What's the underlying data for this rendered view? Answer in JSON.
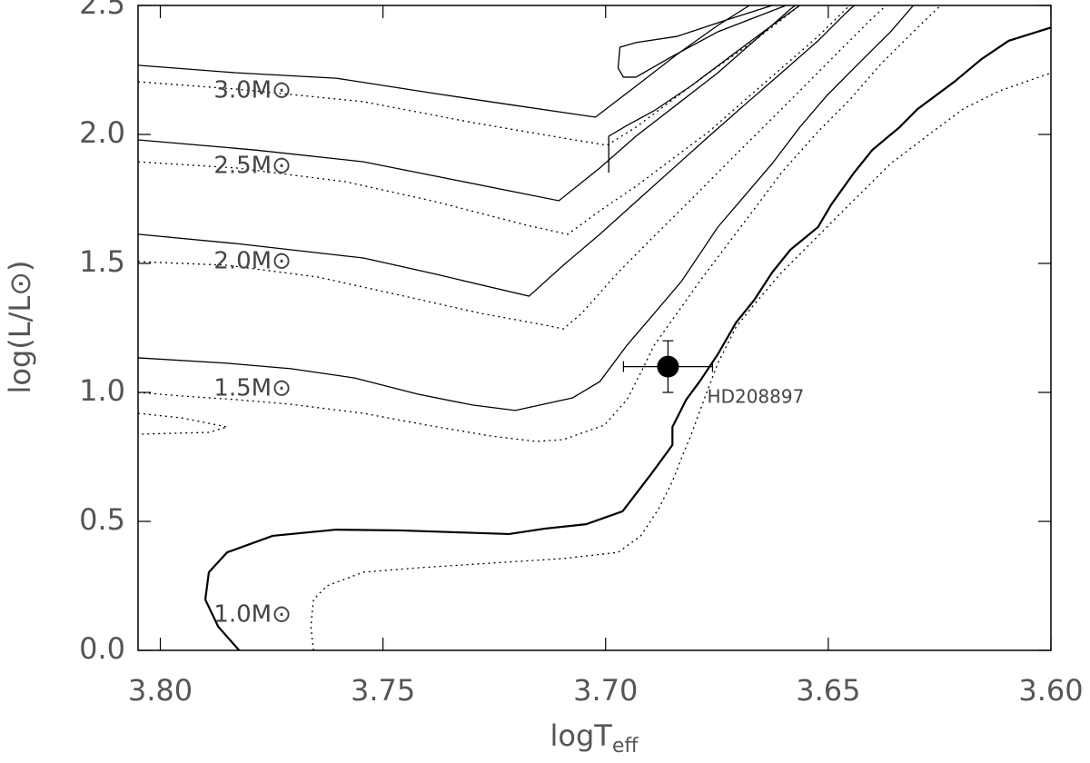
{
  "chart_data": {
    "type": "line",
    "xlabel": {
      "text": "logT",
      "subscript": "eff"
    },
    "ylabel": "log(L/L⊙)",
    "xlim": [
      3.805,
      3.6
    ],
    "ylim": [
      0,
      2.5
    ],
    "xticks": [
      {
        "value": 3.8,
        "label": "3.80"
      },
      {
        "value": 3.75,
        "label": "3.75"
      },
      {
        "value": 3.7,
        "label": "3.70"
      },
      {
        "value": 3.65,
        "label": "3.65"
      },
      {
        "value": 3.6,
        "label": "3.60"
      }
    ],
    "yticks": [
      {
        "value": 0,
        "label": "0.0"
      },
      {
        "value": 0.5,
        "label": "0.5"
      },
      {
        "value": 1,
        "label": "1.0"
      },
      {
        "value": 1.5,
        "label": "1.5"
      },
      {
        "value": 2,
        "label": "2.0"
      },
      {
        "value": 2.5,
        "label": "2.5"
      }
    ],
    "series": [
      {
        "style": "solid",
        "color": "#000000",
        "width": 2.2,
        "x": [
          3.7823,
          3.787,
          3.7899,
          3.7891,
          3.785,
          3.7748,
          3.7605,
          3.7462,
          3.734,
          3.7217,
          3.7136,
          3.7044,
          3.6962,
          3.6895,
          3.685,
          3.685,
          3.6819,
          3.6789,
          3.6748,
          3.6707,
          3.6666,
          3.6626,
          3.6585,
          3.6523,
          3.6493,
          3.6442,
          3.6401,
          3.634,
          3.6299,
          3.6217,
          3.6156,
          3.6095,
          3.5999
        ],
        "values": [
          0,
          0.092,
          0.197,
          0.303,
          0.38,
          0.444,
          0.468,
          0.465,
          0.458,
          0.451,
          0.472,
          0.489,
          0.539,
          0.69,
          0.796,
          0.866,
          0.972,
          1.042,
          1.148,
          1.271,
          1.359,
          1.465,
          1.553,
          1.641,
          1.729,
          1.852,
          1.94,
          2.028,
          2.099,
          2.204,
          2.292,
          2.363,
          2.415
        ]
      },
      {
        "style": "dotted",
        "color": "#000000",
        "width": 1.3,
        "x": [
          3.7656,
          3.7662,
          3.7656,
          3.7626,
          3.7544,
          3.7421,
          3.7258,
          3.7095,
          3.6972,
          3.6921,
          3.6881,
          3.685,
          3.6826,
          3.6809,
          3.6779,
          3.6748,
          3.6707,
          3.6666,
          3.6605,
          3.6544,
          3.6483,
          3.6421,
          3.636,
          3.6279,
          3.6197,
          3.6115,
          3.5999
        ],
        "values": [
          0,
          0.092,
          0.197,
          0.25,
          0.303,
          0.32,
          0.338,
          0.356,
          0.38,
          0.444,
          0.549,
          0.655,
          0.761,
          0.831,
          0.972,
          1.113,
          1.254,
          1.342,
          1.465,
          1.57,
          1.676,
          1.782,
          1.887,
          1.993,
          2.099,
          2.169,
          2.239
        ]
      },
      {
        "style": "solid",
        "color": "#000000",
        "width": 1.3,
        "x": [
          3.805,
          3.785,
          3.7707,
          3.7564,
          3.7421,
          3.7299,
          3.7203,
          3.7074,
          3.7013,
          3.6952,
          3.6891,
          3.683,
          3.6789,
          3.6748,
          3.6687,
          3.6626,
          3.6564,
          3.6503,
          3.6432,
          3.636,
          3.6309
        ],
        "values": [
          1.134,
          1.113,
          1.092,
          1.056,
          0.993,
          0.951,
          0.93,
          0.979,
          1.042,
          1.183,
          1.306,
          1.43,
          1.535,
          1.641,
          1.764,
          1.887,
          2.028,
          2.151,
          2.275,
          2.398,
          2.5
        ]
      },
      {
        "style": "dotted",
        "color": "#000000",
        "width": 1.3,
        "x": [
          3.805,
          3.7952,
          3.783,
          3.7707,
          3.7544,
          3.7401,
          3.7258,
          3.7156,
          3.7095,
          3.7003,
          3.6952,
          3.6921,
          3.6891,
          3.684,
          3.6789,
          3.6728,
          3.6666,
          3.6605,
          3.6523,
          3.6452,
          3.6381,
          3.6299,
          3.6248
        ],
        "values": [
          1.0,
          0.986,
          0.972,
          0.954,
          0.919,
          0.873,
          0.831,
          0.81,
          0.817,
          0.873,
          0.972,
          1.077,
          1.183,
          1.306,
          1.43,
          1.57,
          1.711,
          1.852,
          2.011,
          2.134,
          2.275,
          2.415,
          2.5
        ]
      },
      {
        "style": "dotted",
        "color": "#000000",
        "width": 1.3,
        "x": [
          3.805,
          3.7952,
          3.785,
          3.7891,
          3.805
        ],
        "values": [
          0.919,
          0.901,
          0.866,
          0.845,
          0.838
        ]
      },
      {
        "style": "solid",
        "color": "#000000",
        "width": 1.3,
        "x": [
          3.805,
          3.783,
          3.7544,
          3.7381,
          3.7172,
          3.7095,
          3.7013,
          3.6932,
          3.685,
          3.6768,
          3.6687,
          3.6605,
          3.6523,
          3.6462,
          3.6442
        ],
        "values": [
          1.613,
          1.577,
          1.521,
          1.458,
          1.373,
          1.493,
          1.613,
          1.739,
          1.866,
          1.993,
          2.116,
          2.239,
          2.363,
          2.468,
          2.5
        ]
      },
      {
        "style": "dotted",
        "color": "#000000",
        "width": 1.3,
        "x": [
          3.805,
          3.785,
          3.7646,
          3.7462,
          3.7279,
          3.7136,
          3.7095,
          3.7054,
          3.6972,
          3.6891,
          3.6809,
          3.6728,
          3.6646,
          3.6564,
          3.6483,
          3.6401,
          3.637
        ],
        "values": [
          1.507,
          1.493,
          1.447,
          1.377,
          1.306,
          1.261,
          1.246,
          1.306,
          1.465,
          1.606,
          1.746,
          1.887,
          2.028,
          2.169,
          2.31,
          2.451,
          2.5
        ]
      },
      {
        "style": "solid",
        "color": "#000000",
        "width": 1.3,
        "x": [
          3.805,
          3.7789,
          3.7544,
          3.734,
          3.7105,
          3.7013,
          3.6932,
          3.684,
          3.6748,
          3.6666,
          3.6585,
          3.6574
        ],
        "values": [
          1.979,
          1.94,
          1.894,
          1.824,
          1.743,
          1.87,
          1.993,
          2.116,
          2.239,
          2.363,
          2.486,
          2.5
        ]
      },
      {
        "style": "solid",
        "color": "#000000",
        "width": 1.3,
        "x": [
          3.6993,
          3.6993,
          3.6952,
          3.6891,
          3.6809,
          3.6728,
          3.6646,
          3.6564
        ],
        "values": [
          1.852,
          1.993,
          2.035,
          2.092,
          2.187,
          2.292,
          2.398,
          2.5
        ]
      },
      {
        "style": "dotted",
        "color": "#000000",
        "width": 1.3,
        "x": [
          3.805,
          3.783,
          3.7585,
          3.7381,
          3.7177,
          3.7085,
          3.7013,
          3.6932,
          3.685,
          3.6768,
          3.6687,
          3.6605,
          3.6523,
          3.6452
        ],
        "values": [
          1.894,
          1.87,
          1.817,
          1.739,
          1.648,
          1.613,
          1.704,
          1.799,
          1.905,
          2.011,
          2.134,
          2.257,
          2.38,
          2.5
        ]
      },
      {
        "style": "solid",
        "color": "#000000",
        "width": 1.3,
        "x": [
          3.805,
          3.783,
          3.7605,
          3.7381,
          3.7217,
          3.7023,
          3.6932,
          3.684,
          3.6748,
          3.6677
        ],
        "values": [
          2.268,
          2.239,
          2.218,
          2.158,
          2.116,
          2.067,
          2.187,
          2.31,
          2.423,
          2.5
        ]
      },
      {
        "style": "solid",
        "color": "#000000",
        "width": 1.3,
        "x": [
          3.6626,
          3.6728,
          3.684,
          3.6932,
          3.6968,
          3.6972,
          3.696,
          3.6932,
          3.685,
          3.6748,
          3.6595
        ],
        "values": [
          2.5,
          2.444,
          2.38,
          2.356,
          2.338,
          2.257,
          2.222,
          2.222,
          2.303,
          2.398,
          2.5
        ]
      },
      {
        "style": "dotted",
        "color": "#000000",
        "width": 1.3,
        "x": [
          3.805,
          3.783,
          3.7544,
          3.7299,
          3.7095,
          3.6997,
          3.6932,
          3.685,
          3.6768,
          3.6666,
          3.6564
        ],
        "values": [
          2.204,
          2.176,
          2.127,
          2.046,
          1.986,
          1.958,
          2.028,
          2.134,
          2.239,
          2.363,
          2.5
        ]
      }
    ],
    "annotations": [
      {
        "text": "3.0M⊙",
        "x": 3.788,
        "y": 2.169
      },
      {
        "text": "2.5M⊙",
        "x": 3.788,
        "y": 1.877
      },
      {
        "text": "2.0M⊙",
        "x": 3.788,
        "y": 1.507
      },
      {
        "text": "1.5M⊙",
        "x": 3.788,
        "y": 1.014
      },
      {
        "text": "1.0M⊙",
        "x": 3.788,
        "y": 0.137
      }
    ],
    "points": [
      {
        "name": "HD208897",
        "x": 3.686,
        "y": 1.1,
        "xerr": 0.01,
        "yerr": 0.1,
        "label_x": 3.6772,
        "label_y": 0.979
      }
    ]
  }
}
